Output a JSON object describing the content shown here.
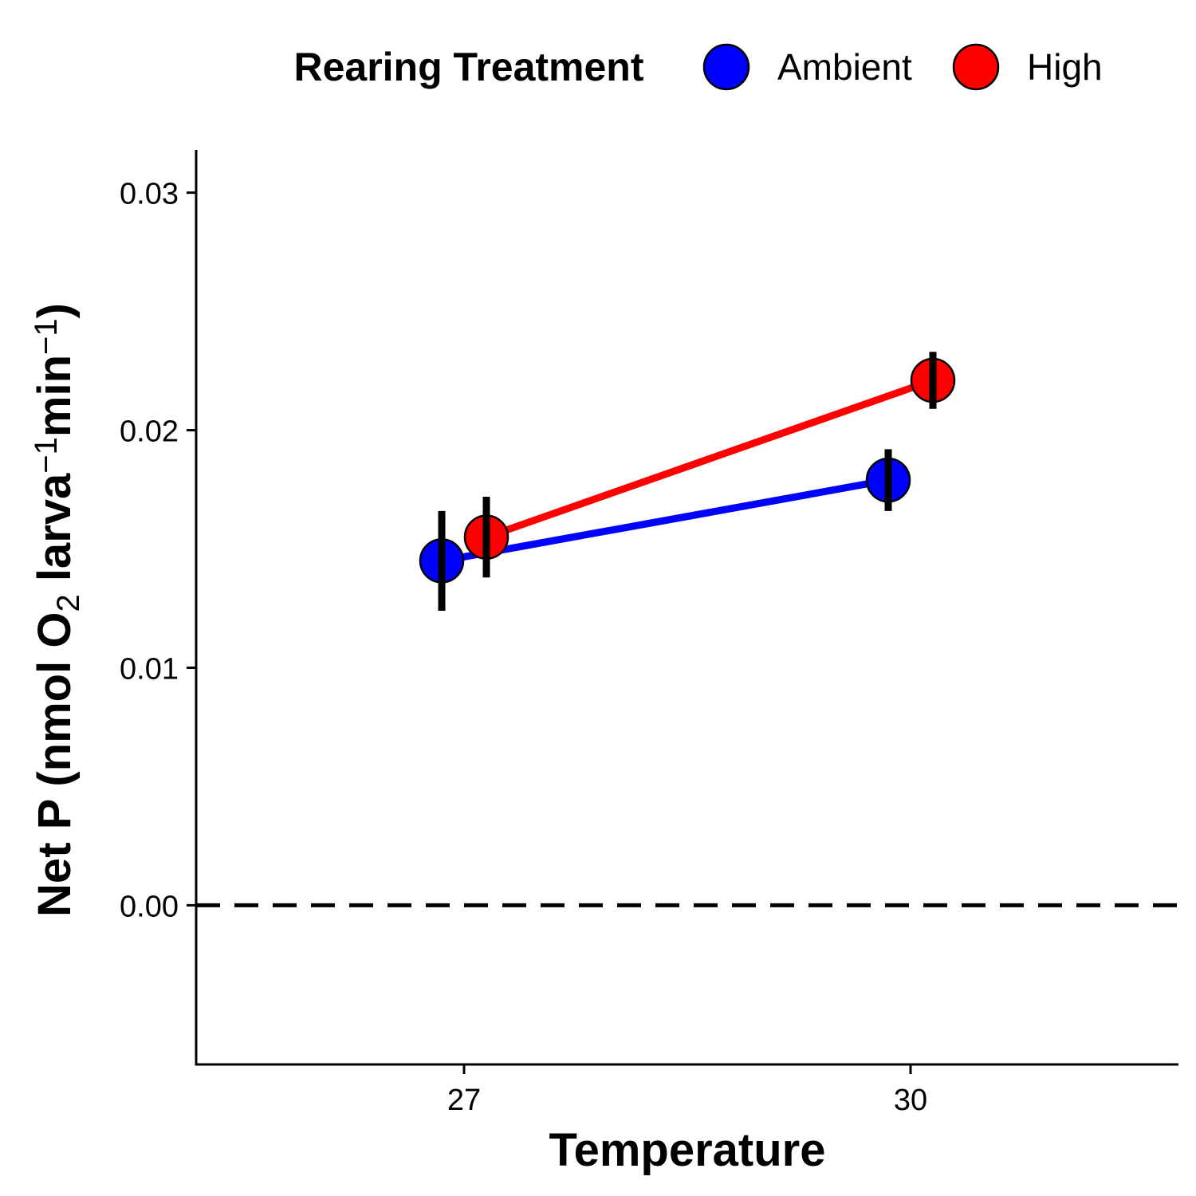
{
  "chart_data": {
    "type": "line",
    "xlabel": "Temperature",
    "ylabel": {
      "parts": [
        {
          "text": "Net P (nmol O",
          "style": "normal"
        },
        {
          "text": "2",
          "style": "sub"
        },
        {
          "text": " larva",
          "style": "normal"
        },
        {
          "text": "−1",
          "style": "sup"
        },
        {
          "text": "min",
          "style": "normal"
        },
        {
          "text": "−1",
          "style": "sup"
        },
        {
          "text": ")",
          "style": "normal"
        }
      ]
    },
    "x_ticks": [
      {
        "value": 27,
        "label": "27"
      },
      {
        "value": 30,
        "label": "30"
      }
    ],
    "y_ticks": [
      {
        "value": 0.0,
        "label": "0.00"
      },
      {
        "value": 0.01,
        "label": "0.01"
      },
      {
        "value": 0.02,
        "label": "0.02"
      },
      {
        "value": 0.03,
        "label": "0.03"
      }
    ],
    "xlim": [
      25.2,
      31.8
    ],
    "ylim": [
      -0.0067,
      0.0318
    ],
    "reference_line": {
      "y": 0,
      "style": "dashed",
      "color": "#000000"
    },
    "legend": {
      "title": "Rearing Treatment",
      "position": "top"
    },
    "series": [
      {
        "name": "Ambient",
        "color": "#0000ff",
        "points": [
          {
            "x": 26.85,
            "y": 0.0145,
            "err_low": 0.0124,
            "err_high": 0.0166
          },
          {
            "x": 29.85,
            "y": 0.0179,
            "err_low": 0.0166,
            "err_high": 0.0192
          }
        ]
      },
      {
        "name": "High",
        "color": "#ff0000",
        "points": [
          {
            "x": 27.15,
            "y": 0.0155,
            "err_low": 0.0138,
            "err_high": 0.0172
          },
          {
            "x": 30.15,
            "y": 0.0221,
            "err_low": 0.0209,
            "err_high": 0.0233
          }
        ]
      }
    ],
    "grid": false
  }
}
